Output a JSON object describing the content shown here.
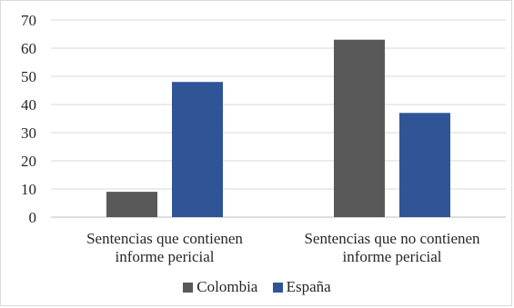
{
  "chart_data": {
    "type": "bar",
    "categories": [
      [
        "Sentencias que contienen",
        "informe pericial"
      ],
      [
        "Sentencias que no contienen",
        "informe pericial"
      ]
    ],
    "series": [
      {
        "name": "Colombia",
        "values": [
          9,
          63
        ],
        "color": "#595959"
      },
      {
        "name": "España",
        "values": [
          48,
          37
        ],
        "color": "#2f5597"
      }
    ],
    "yticks": [
      0,
      10,
      20,
      30,
      40,
      50,
      60,
      70
    ],
    "ylim": [
      0,
      70
    ],
    "grid": true,
    "legend_position": "bottom",
    "title": "",
    "xlabel": "",
    "ylabel": ""
  }
}
